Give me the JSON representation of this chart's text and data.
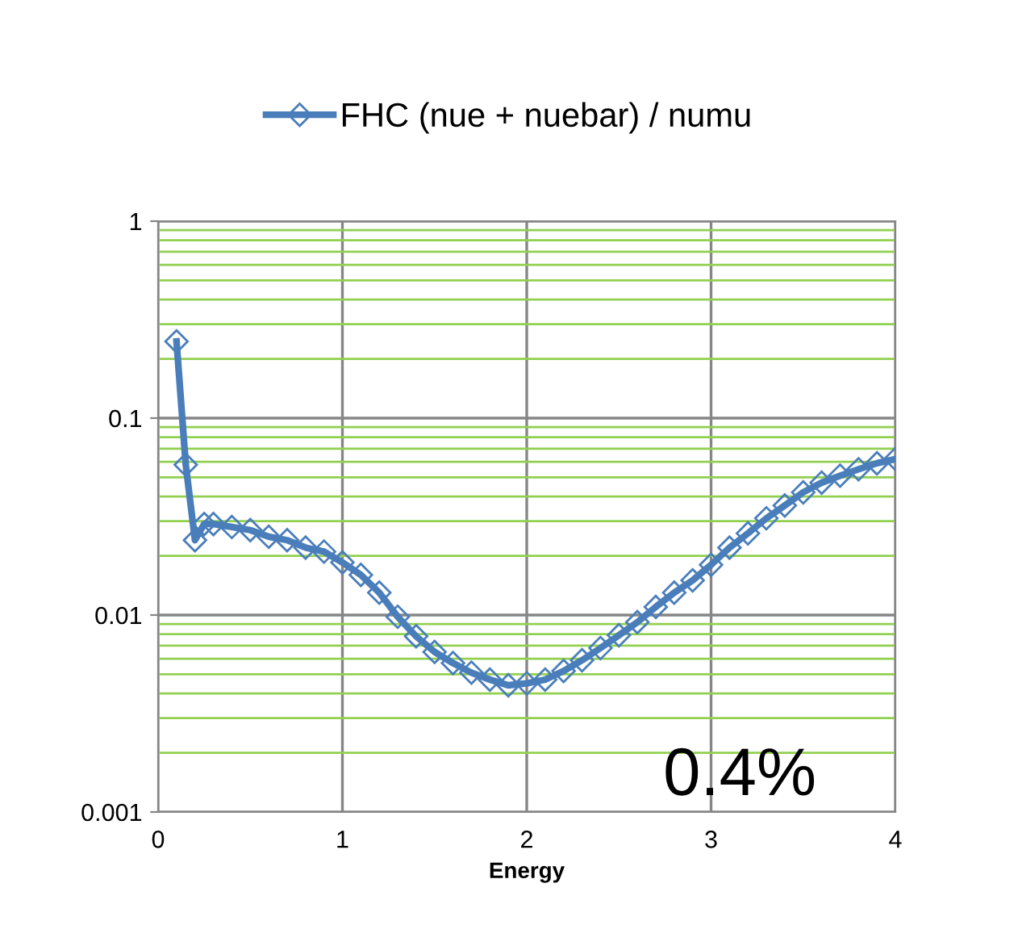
{
  "chart_data": {
    "type": "line",
    "xlabel": "Energy",
    "x": [
      0.1,
      0.15,
      0.2,
      0.25,
      0.3,
      0.4,
      0.5,
      0.6,
      0.7,
      0.8,
      0.9,
      1.0,
      1.1,
      1.2,
      1.3,
      1.4,
      1.5,
      1.6,
      1.7,
      1.8,
      1.9,
      2.0,
      2.1,
      2.2,
      2.3,
      2.4,
      2.5,
      2.6,
      2.7,
      2.8,
      2.9,
      3.0,
      3.1,
      3.2,
      3.3,
      3.4,
      3.5,
      3.6,
      3.7,
      3.8,
      3.9,
      4.0
    ],
    "series": [
      {
        "name": "FHC (nue + nuebar) / numu",
        "color": "#4a7ebb",
        "values": [
          0.245,
          0.058,
          0.024,
          0.029,
          0.029,
          0.028,
          0.027,
          0.025,
          0.024,
          0.022,
          0.021,
          0.0185,
          0.016,
          0.013,
          0.0098,
          0.0078,
          0.0065,
          0.0057,
          0.0051,
          0.0047,
          0.0044,
          0.0045,
          0.0047,
          0.0052,
          0.0059,
          0.0068,
          0.0079,
          0.0092,
          0.011,
          0.013,
          0.015,
          0.018,
          0.022,
          0.026,
          0.031,
          0.036,
          0.042,
          0.047,
          0.051,
          0.055,
          0.059,
          0.062
        ]
      }
    ],
    "log": true,
    "xlim": [
      0,
      4
    ],
    "xticks": [
      0,
      1,
      2,
      3,
      4
    ],
    "ylim": [
      0.001,
      1
    ],
    "yticks": [
      0.001,
      {
        "value": 0.002,
        "label": null
      },
      {
        "value": 0.003,
        "label": null
      },
      {
        "value": 0.004,
        "label": null
      },
      {
        "value": 0.005,
        "label": null
      },
      {
        "value": 0.006,
        "label": null
      },
      {
        "value": 0.007,
        "label": null
      },
      {
        "value": 0.008,
        "label": null
      },
      {
        "value": 0.009,
        "label": null
      },
      0.01,
      {
        "value": 0.02,
        "label": null
      },
      {
        "value": 0.03,
        "label": null
      },
      {
        "value": 0.04,
        "label": null
      },
      {
        "value": 0.05,
        "label": null
      },
      {
        "value": 0.06,
        "label": null
      },
      {
        "value": 0.07,
        "label": null
      },
      {
        "value": 0.08,
        "label": null
      },
      {
        "value": 0.09,
        "label": null
      },
      0.1,
      {
        "value": 0.2,
        "label": null
      },
      {
        "value": 0.3,
        "label": null
      },
      {
        "value": 0.4,
        "label": null
      },
      {
        "value": 0.5,
        "label": null
      },
      {
        "value": 0.6,
        "label": null
      },
      {
        "value": 0.7,
        "label": null
      },
      {
        "value": 0.8,
        "label": null
      },
      {
        "value": 0.9,
        "label": null
      },
      1
    ],
    "grid": true,
    "legend": "top",
    "marker": "diamond",
    "line_style": "solid",
    "annotations": [
      "0.4%"
    ]
  }
}
